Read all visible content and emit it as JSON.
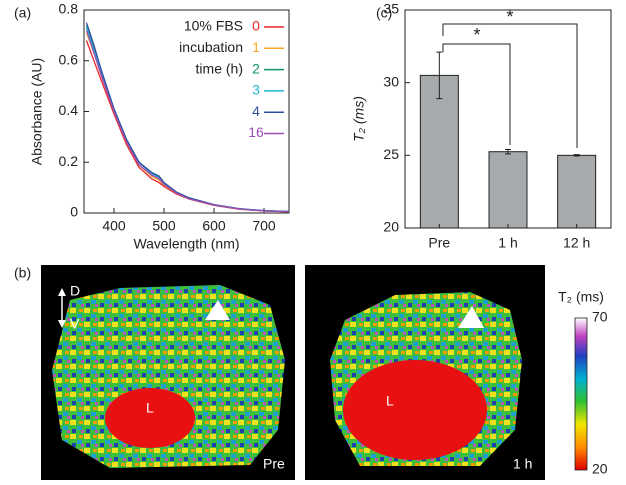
{
  "chart_data": [
    {
      "type": "line",
      "panel": "(a)",
      "x_label": "Wavelength (nm)",
      "y_label": "Absorbance (AU)",
      "legend_title": [
        "10% FBS",
        "incubation",
        "time (h)"
      ],
      "x": [
        345,
        360,
        375,
        400,
        425,
        450,
        475,
        490,
        500,
        525,
        550,
        600,
        650,
        700,
        750
      ],
      "series": [
        {
          "name": "0",
          "color": "#e8242a",
          "values": [
            0.68,
            0.6,
            0.52,
            0.39,
            0.27,
            0.18,
            0.135,
            0.12,
            0.105,
            0.075,
            0.055,
            0.03,
            0.015,
            0.008,
            0.005
          ]
        },
        {
          "name": "1",
          "color": "#f5a623",
          "values": [
            0.71,
            0.63,
            0.54,
            0.4,
            0.28,
            0.19,
            0.145,
            0.13,
            0.11,
            0.078,
            0.057,
            0.031,
            0.016,
            0.008,
            0.005
          ]
        },
        {
          "name": "2",
          "color": "#11966b",
          "values": [
            0.74,
            0.65,
            0.56,
            0.41,
            0.29,
            0.2,
            0.16,
            0.145,
            0.12,
            0.082,
            0.06,
            0.032,
            0.017,
            0.009,
            0.006
          ]
        },
        {
          "name": "3",
          "color": "#28b6d9",
          "values": [
            0.73,
            0.64,
            0.55,
            0.41,
            0.285,
            0.2,
            0.155,
            0.14,
            0.118,
            0.08,
            0.058,
            0.032,
            0.016,
            0.009,
            0.006
          ]
        },
        {
          "name": "4",
          "color": "#2f4ea1",
          "values": [
            0.75,
            0.66,
            0.56,
            0.41,
            0.29,
            0.2,
            0.16,
            0.145,
            0.12,
            0.082,
            0.06,
            0.033,
            0.017,
            0.009,
            0.006
          ]
        },
        {
          "name": "16",
          "color": "#9a4fb7",
          "values": [
            0.72,
            0.63,
            0.54,
            0.4,
            0.28,
            0.19,
            0.15,
            0.135,
            0.113,
            0.078,
            0.056,
            0.031,
            0.016,
            0.008,
            0.005
          ]
        }
      ],
      "xlim": [
        340,
        750
      ],
      "xticks": [
        400,
        500,
        600,
        700
      ],
      "ylim": [
        0,
        0.8
      ],
      "yticks": [
        0,
        0.2,
        0.4,
        0.6,
        0.8
      ]
    },
    {
      "type": "bar",
      "panel": "(c)",
      "y_label": "T₂ (ms)",
      "categories": [
        "Pre",
        "1 h",
        "12 h"
      ],
      "values": [
        30.5,
        25.25,
        25.0
      ],
      "errors": [
        1.6,
        0.15,
        0.05
      ],
      "color": "#a7aaad",
      "ylim": [
        20,
        35
      ],
      "yticks": [
        20,
        25,
        30,
        35
      ],
      "annotations": [
        "*",
        "*"
      ]
    }
  ],
  "images": {
    "panel": "(b)",
    "orientation": [
      "D",
      "V"
    ],
    "panels": [
      {
        "region": "L",
        "label": "Pre"
      },
      {
        "region": "L",
        "label": "1 h"
      }
    ],
    "colorbar": {
      "label": "T₂ (ms)",
      "max": 70,
      "min": 20
    }
  }
}
